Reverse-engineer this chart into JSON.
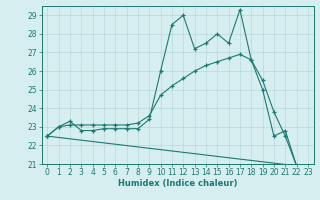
{
  "xlabel": "Humidex (Indice chaleur)",
  "bg_color": "#d6eef0",
  "grid_color": "#b8d8dc",
  "line_color": "#1a7a6e",
  "xlim": [
    -0.5,
    23.5
  ],
  "ylim": [
    21.0,
    29.5
  ],
  "yticks": [
    21,
    22,
    23,
    24,
    25,
    26,
    27,
    28,
    29
  ],
  "line1_x": [
    0,
    1,
    2,
    3,
    4,
    5,
    6,
    7,
    8,
    9,
    10,
    11,
    12,
    13,
    14,
    15,
    16,
    17,
    18,
    19,
    20,
    21,
    22
  ],
  "line1_y": [
    22.5,
    23.0,
    23.3,
    22.8,
    22.8,
    22.9,
    22.9,
    22.9,
    22.9,
    23.4,
    26.0,
    28.5,
    29.0,
    27.2,
    27.5,
    28.0,
    27.5,
    29.3,
    26.6,
    25.0,
    22.5,
    22.8,
    20.9
  ],
  "line2_x": [
    0,
    1,
    2,
    3,
    4,
    5,
    6,
    7,
    8,
    9,
    10,
    11,
    12,
    13,
    14,
    15,
    16,
    17,
    18,
    19,
    20,
    21,
    22
  ],
  "line2_y": [
    22.5,
    23.0,
    23.1,
    23.1,
    23.1,
    23.1,
    23.1,
    23.1,
    23.2,
    23.6,
    24.7,
    25.2,
    25.6,
    26.0,
    26.3,
    26.5,
    26.7,
    26.9,
    26.6,
    25.5,
    23.8,
    22.5,
    20.9
  ],
  "line3_x": [
    0,
    22
  ],
  "line3_y": [
    22.5,
    20.9
  ]
}
